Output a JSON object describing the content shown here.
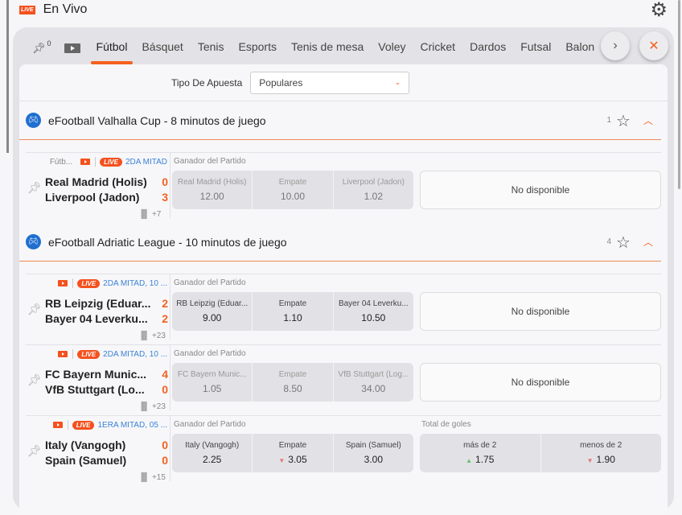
{
  "header": {
    "live_badge": "LIVE",
    "title": "En Vivo"
  },
  "tabs": {
    "pinned_count": "0",
    "items": [
      "Fútbol",
      "Básquet",
      "Tenis",
      "Esports",
      "Tenis de mesa",
      "Voley",
      "Cricket",
      "Dardos",
      "Futsal",
      "Balonmano"
    ],
    "active": "Fútbol"
  },
  "filter": {
    "label": "Tipo De Apuesta",
    "value": "Populares"
  },
  "colors": {
    "accent": "#f4611e",
    "live": "#f4511e",
    "phase": "#3b82d6"
  },
  "leagues": [
    {
      "name": "eFootball Valhalla Cup - 8 minutos de juego",
      "count": "1",
      "matches": [
        {
          "sport": "Fútb...",
          "live": "LIVE",
          "phase": "2DA MITAD",
          "home": "Real Madrid (Holis)",
          "away": "Liverpool (Jadon)",
          "home_score": "0",
          "away_score": "3",
          "more": "+7",
          "market": "Ganador del Partido",
          "odds": [
            {
              "n": "Real Madrid (Holis)",
              "v": "12.00"
            },
            {
              "n": "Empate",
              "v": "10.00"
            },
            {
              "n": "Liverpool (Jadon)",
              "v": "1.02"
            }
          ],
          "disabled": true,
          "side": "No disponible"
        }
      ]
    },
    {
      "name": "eFootball Adriatic League - 10 minutos de juego",
      "count": "4",
      "matches": [
        {
          "live": "LIVE",
          "phase": "2DA MITAD, 10 ...",
          "home": "RB Leipzig (Eduar...",
          "away": "Bayer 04 Leverku...",
          "home_score": "2",
          "away_score": "2",
          "more": "+23",
          "market": "Ganador del Partido",
          "odds": [
            {
              "n": "RB Leipzig (Eduar...",
              "v": "9.00"
            },
            {
              "n": "Empate",
              "v": "1.10"
            },
            {
              "n": "Bayer 04 Leverku...",
              "v": "10.50"
            }
          ],
          "side": "No disponible"
        },
        {
          "live": "LIVE",
          "phase": "2DA MITAD, 10 ...",
          "home": "FC Bayern Munic...",
          "away": "VfB Stuttgart (Lo...",
          "home_score": "4",
          "away_score": "0",
          "more": "+23",
          "market": "Ganador del Partido",
          "odds": [
            {
              "n": "FC Bayern Munic...",
              "v": "1.05"
            },
            {
              "n": "Empate",
              "v": "8.50"
            },
            {
              "n": "VfB Stuttgart (Log...",
              "v": "34.00"
            }
          ],
          "disabled": true,
          "side": "No disponible"
        },
        {
          "live": "LIVE",
          "phase": "1ERA MITAD, 05 ...",
          "home": "Italy (Vangogh)",
          "away": "Spain (Samuel)",
          "home_score": "0",
          "away_score": "0",
          "more": "+15",
          "market": "Ganador del Partido",
          "odds": [
            {
              "n": "Italy (Vangogh)",
              "v": "2.25"
            },
            {
              "n": "Empate",
              "v": "3.05",
              "trend": "down"
            },
            {
              "n": "Spain (Samuel)",
              "v": "3.00"
            }
          ],
          "total": {
            "label": "Total de goles",
            "odds": [
              {
                "n": "más de 2",
                "v": "1.75",
                "trend": "up"
              },
              {
                "n": "menos de 2",
                "v": "1.90",
                "trend": "down"
              }
            ]
          }
        }
      ]
    }
  ]
}
